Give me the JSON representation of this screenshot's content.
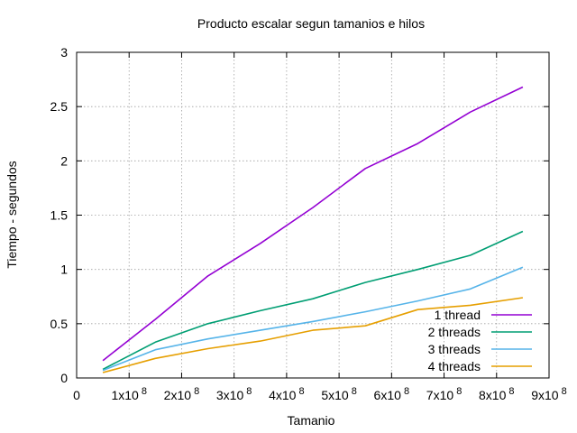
{
  "chart_data": {
    "type": "line",
    "title": "Producto escalar segun tamanios e hilos",
    "xlabel": "Tamanio",
    "ylabel": "Tiempo - segundos",
    "xlim": [
      0,
      900000000
    ],
    "ylim": [
      0,
      3
    ],
    "grid": true,
    "legend_position": "bottom-right",
    "x_ticks": [
      {
        "value": 0,
        "label": "0"
      },
      {
        "value": 100000000,
        "label": "1x10^8"
      },
      {
        "value": 200000000,
        "label": "2x10^8"
      },
      {
        "value": 300000000,
        "label": "3x10^8"
      },
      {
        "value": 400000000,
        "label": "4x10^8"
      },
      {
        "value": 500000000,
        "label": "5x10^8"
      },
      {
        "value": 600000000,
        "label": "6x10^8"
      },
      {
        "value": 700000000,
        "label": "7x10^8"
      },
      {
        "value": 800000000,
        "label": "8x10^8"
      },
      {
        "value": 900000000,
        "label": "9x10^8"
      }
    ],
    "y_ticks": [
      {
        "value": 0,
        "label": "0"
      },
      {
        "value": 0.5,
        "label": "0.5"
      },
      {
        "value": 1,
        "label": "1"
      },
      {
        "value": 1.5,
        "label": "1.5"
      },
      {
        "value": 2,
        "label": "2"
      },
      {
        "value": 2.5,
        "label": "2.5"
      },
      {
        "value": 3,
        "label": "3"
      }
    ],
    "x": [
      50000000,
      150000000,
      250000000,
      350000000,
      450000000,
      550000000,
      650000000,
      750000000,
      850000000
    ],
    "series": [
      {
        "name": "1 thread",
        "color": "#9400d3",
        "values": [
          0.16,
          0.54,
          0.94,
          1.24,
          1.57,
          1.93,
          2.16,
          2.45,
          2.68
        ]
      },
      {
        "name": "2 threads",
        "color": "#009e73",
        "values": [
          0.08,
          0.33,
          0.5,
          0.62,
          0.73,
          0.88,
          1.0,
          1.13,
          1.35
        ]
      },
      {
        "name": "3 threads",
        "color": "#56b4e9",
        "values": [
          0.07,
          0.26,
          0.36,
          0.44,
          0.52,
          0.61,
          0.71,
          0.82,
          1.02
        ]
      },
      {
        "name": "4 threads",
        "color": "#e69f00",
        "values": [
          0.05,
          0.18,
          0.27,
          0.34,
          0.44,
          0.48,
          0.63,
          0.67,
          0.74
        ]
      }
    ]
  }
}
